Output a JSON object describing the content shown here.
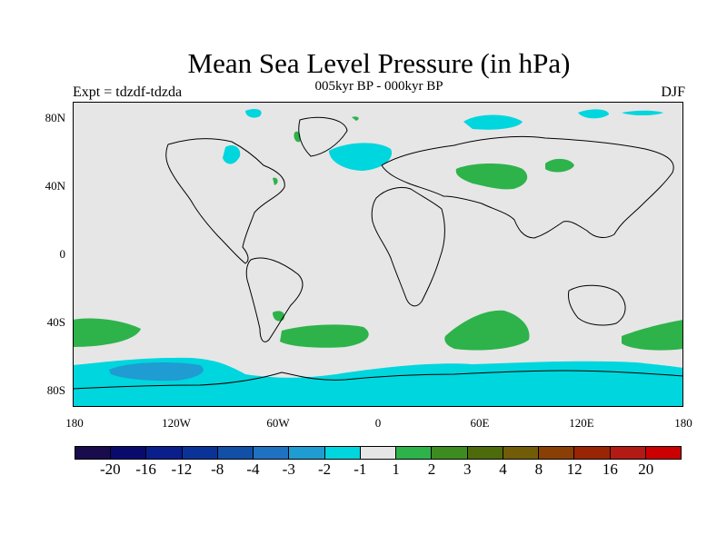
{
  "title": "Mean Sea Level Pressure (in hPa)",
  "subtitle": "005kyr BP - 000kyr BP",
  "left_label": "Expt = tdzdf-tdzda",
  "right_label": "DJF",
  "axes": {
    "y_ticks": [
      "80N",
      "40N",
      "0",
      "40S",
      "80S"
    ],
    "x_ticks": [
      "180",
      "120W",
      "60W",
      "0",
      "60E",
      "120E",
      "180"
    ]
  },
  "colorbar": {
    "labels": [
      "-20",
      "-16",
      "-12",
      "-8",
      "-4",
      "-3",
      "-2",
      "-1",
      "1",
      "2",
      "3",
      "4",
      "8",
      "12",
      "16",
      "20"
    ],
    "colors": [
      "#1a0b4d",
      "#0a0a6e",
      "#0a1f8c",
      "#0a3399",
      "#1250a8",
      "#1f72c2",
      "#1f9cd1",
      "#00d6dd",
      "#e6e6e6",
      "#2db34a",
      "#3d8c1f",
      "#4d6b0a",
      "#735c08",
      "#8a4005",
      "#992505",
      "#b31a14",
      "#cc0000"
    ]
  },
  "map": {
    "background": "#e6e6e6",
    "land_outline": "#000000",
    "shading": [
      {
        "level": "-2 to -1",
        "color": "#00d6dd",
        "region": "Southern Ocean band, Arctic Ocean patches, North Atlantic"
      },
      {
        "level": "-3 to -2",
        "color": "#1f9cd1",
        "region": "South Pacific near 60S 130W"
      },
      {
        "level": "1 to 2",
        "color": "#2db34a",
        "region": "Southern midlatitude highs, Eurasia/Siberia, Greenland"
      }
    ]
  }
}
